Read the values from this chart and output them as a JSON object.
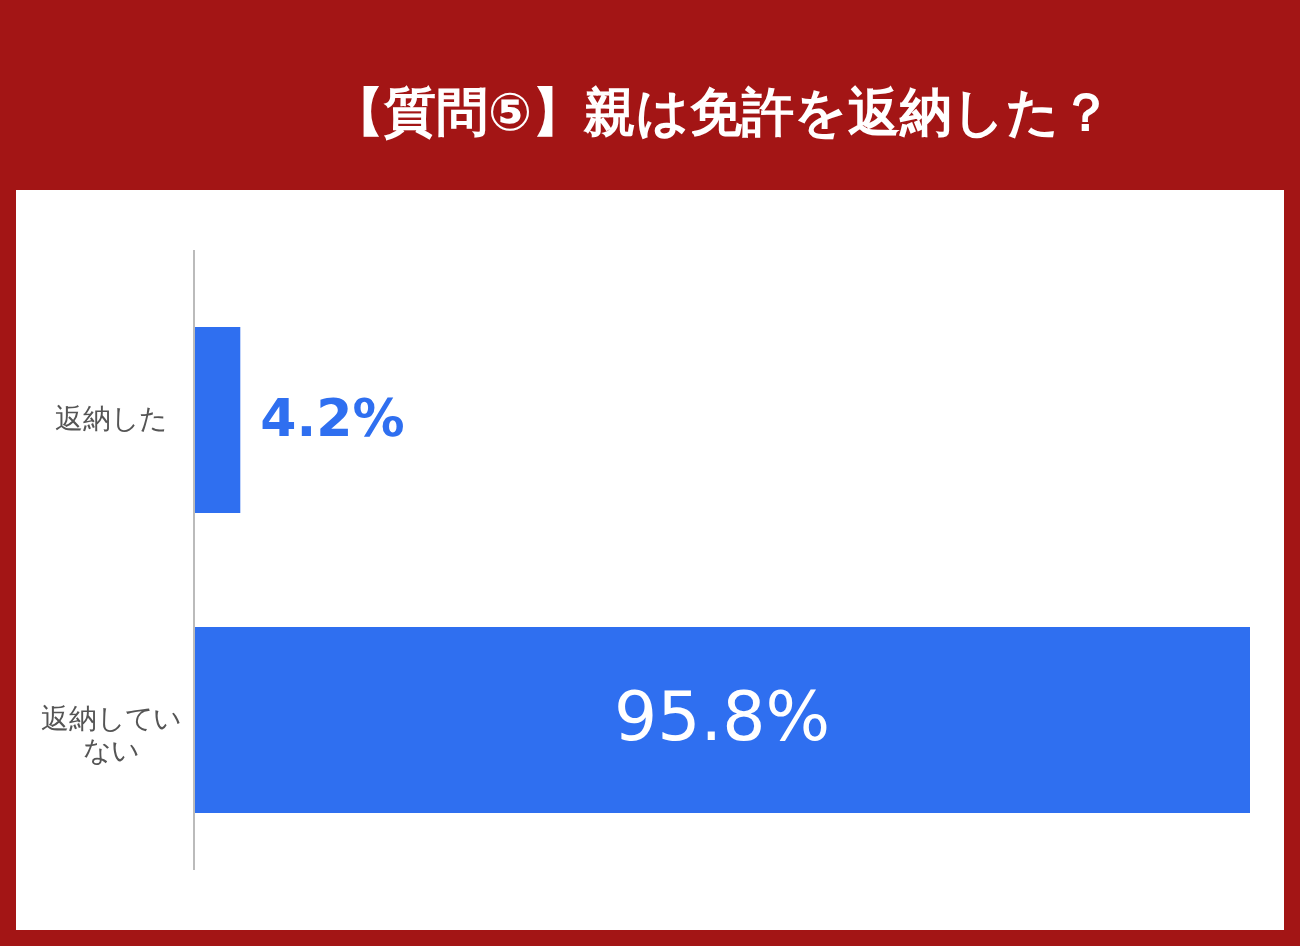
{
  "chart_data": {
    "type": "bar",
    "orientation": "horizontal",
    "title": "【質問⑤】親は免許を返納した？",
    "categories": [
      "返納した",
      "返納していない"
    ],
    "values": [
      4.2,
      95.8
    ],
    "value_labels": [
      "4.2%",
      "95.8%"
    ],
    "color": "#2f6ff0"
  }
}
